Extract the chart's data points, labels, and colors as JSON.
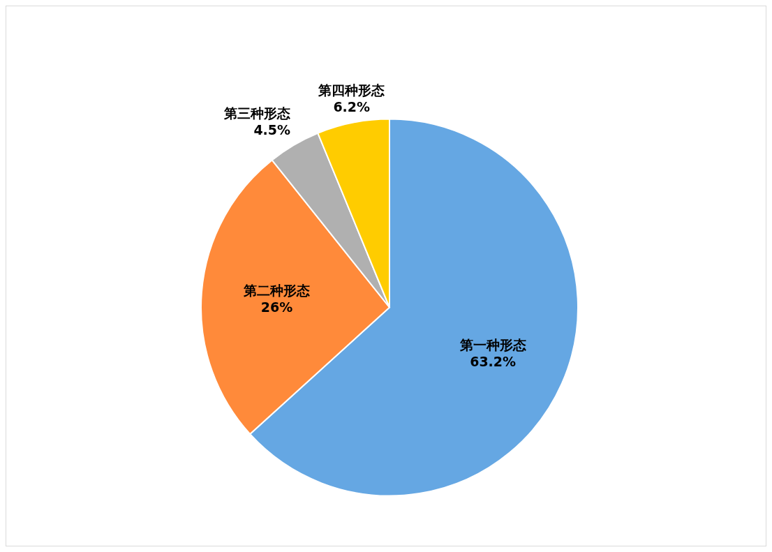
{
  "chart_data": {
    "type": "pie",
    "categories": [
      "第一种形态",
      "第二种形态",
      "第三种形态",
      "第四种形态"
    ],
    "values": [
      63.2,
      26,
      4.5,
      6.2
    ],
    "colors": [
      "#65a7e3",
      "#ff8a3a",
      "#b0b0b0",
      "#ffcc00"
    ],
    "value_labels": [
      "63.2%",
      "26%",
      "4.5%",
      "6.2%"
    ]
  }
}
